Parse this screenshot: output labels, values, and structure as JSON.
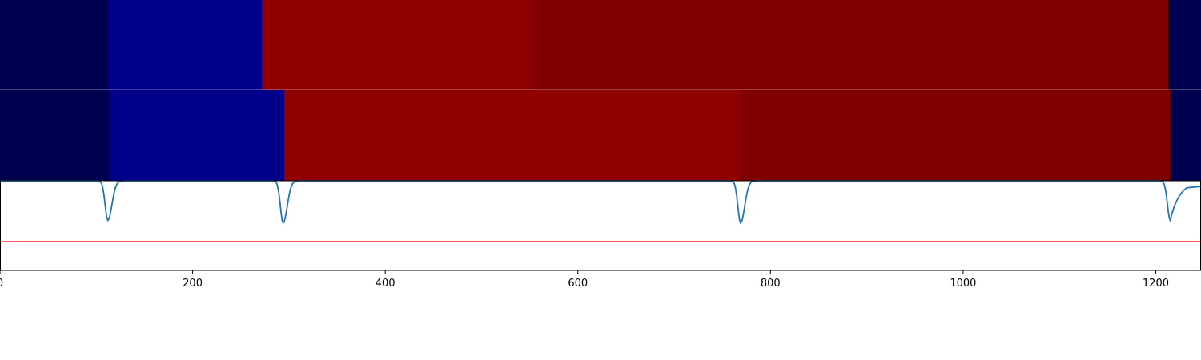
{
  "chart_data": [
    {
      "type": "heatmap",
      "row": 1,
      "segments": [
        {
          "start": 0,
          "end": 112,
          "color": "#000050"
        },
        {
          "start": 112,
          "end": 272,
          "color": "#00008b"
        },
        {
          "start": 272,
          "end": 553,
          "color": "#8f0000"
        },
        {
          "start": 553,
          "end": 1213,
          "color": "#7f0000"
        },
        {
          "start": 1213,
          "end": 1247,
          "color": "#000050"
        }
      ]
    },
    {
      "type": "heatmap",
      "row": 2,
      "segments": [
        {
          "start": 0,
          "end": 114,
          "color": "#000050"
        },
        {
          "start": 114,
          "end": 295,
          "color": "#00008b"
        },
        {
          "start": 295,
          "end": 769,
          "color": "#8f0000"
        },
        {
          "start": 769,
          "end": 1215,
          "color": "#7f0000"
        },
        {
          "start": 1215,
          "end": 1247,
          "color": "#000050"
        }
      ]
    },
    {
      "type": "line",
      "xlim": [
        0,
        1247
      ],
      "ylim": [
        0,
        1
      ],
      "threshold": 0.32,
      "threshold_color": "#ff0000",
      "line_color": "#1f77b4",
      "baseline": 1.0,
      "dips": [
        {
          "x": 112,
          "min": 0.56
        },
        {
          "x": 294,
          "min": 0.53
        },
        {
          "x": 769,
          "min": 0.53
        },
        {
          "x": 1215,
          "min": 0.56
        }
      ],
      "end_value": 0.92,
      "x_ticks": [
        0,
        200,
        400,
        600,
        800,
        1000,
        1200
      ],
      "x_tick_labels": [
        "0",
        "200",
        "400",
        "600",
        "800",
        "1000",
        "1200"
      ]
    }
  ]
}
